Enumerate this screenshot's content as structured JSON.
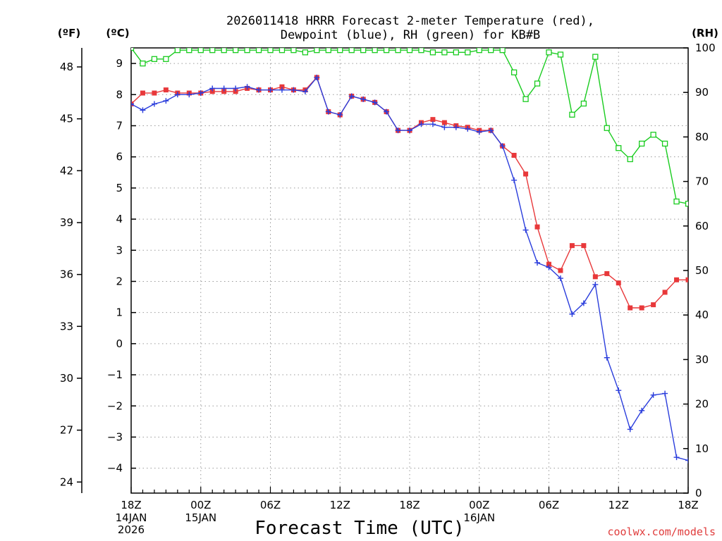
{
  "chart_data": {
    "type": "line",
    "title_line1": "2026011418 HRRR Forecast 2-meter Temperature (red),",
    "title_line2": "Dewpoint (blue), RH (green) for KB#B",
    "xlabel": "Forecast Time (UTC)",
    "credit": "coolwx.com/models",
    "left_unit_f": "(ºF)",
    "left_unit_c": "(ºC)",
    "right_unit": "(RH)",
    "forecast_hours": [
      0,
      1,
      2,
      3,
      4,
      5,
      6,
      7,
      8,
      9,
      10,
      11,
      12,
      13,
      14,
      15,
      16,
      17,
      18,
      19,
      20,
      21,
      22,
      23,
      24,
      25,
      26,
      27,
      28,
      29,
      30,
      31,
      32,
      33,
      34,
      35,
      36,
      37,
      38,
      39,
      40,
      41,
      42,
      43,
      44,
      45,
      46,
      47,
      48
    ],
    "x_ticks": [
      {
        "hour": 0,
        "label": "18Z",
        "sub1": "14JAN",
        "sub2": "2026"
      },
      {
        "hour": 6,
        "label": "00Z",
        "sub1": "15JAN",
        "sub2": ""
      },
      {
        "hour": 12,
        "label": "06Z",
        "sub1": "",
        "sub2": ""
      },
      {
        "hour": 18,
        "label": "12Z",
        "sub1": "",
        "sub2": ""
      },
      {
        "hour": 24,
        "label": "18Z",
        "sub1": "",
        "sub2": ""
      },
      {
        "hour": 30,
        "label": "00Z",
        "sub1": "16JAN",
        "sub2": ""
      },
      {
        "hour": 36,
        "label": "06Z",
        "sub1": "",
        "sub2": ""
      },
      {
        "hour": 42,
        "label": "12Z",
        "sub1": "",
        "sub2": ""
      },
      {
        "hour": 48,
        "label": "18Z",
        "sub1": "",
        "sub2": ""
      }
    ],
    "y_left_c": {
      "min": -4.8,
      "max": 9.5,
      "ticks": [
        9,
        8,
        7,
        6,
        5,
        4,
        3,
        2,
        1,
        0,
        -1,
        -2,
        -3,
        -4
      ],
      "labels": [
        "9",
        "8",
        "7",
        "6",
        "5",
        "4",
        "3",
        "2",
        "1",
        "0",
        "−1",
        "−2",
        "−3",
        "−4"
      ]
    },
    "y_left_f": {
      "ticks": [
        48,
        45,
        42,
        39,
        36,
        33,
        30,
        27,
        24
      ],
      "labels": [
        "48",
        "45",
        "42",
        "39",
        "36",
        "33",
        "30",
        "27",
        "24"
      ]
    },
    "y_right_rh": {
      "min": 0,
      "max": 100,
      "ticks": [
        100,
        90,
        80,
        70,
        60,
        50,
        40,
        30,
        20,
        10,
        0
      ],
      "labels": [
        "100",
        "90",
        "80",
        "70",
        "60",
        "50",
        "40",
        "30",
        "20",
        "10",
        "0"
      ]
    },
    "series": [
      {
        "name": "Temperature",
        "color": "#e8383a",
        "axis": "c",
        "marker": "filled-square",
        "values": [
          7.7,
          8.05,
          8.05,
          8.15,
          8.05,
          8.05,
          8.05,
          8.1,
          8.1,
          8.1,
          8.2,
          8.15,
          8.15,
          8.25,
          8.15,
          8.15,
          8.55,
          7.45,
          7.35,
          7.95,
          7.85,
          7.75,
          7.45,
          6.85,
          6.85,
          7.1,
          7.2,
          7.1,
          7.0,
          6.95,
          6.85,
          6.85,
          6.35,
          6.05,
          5.45,
          3.75,
          2.55,
          2.35,
          3.15,
          3.15,
          2.15,
          2.25,
          1.95,
          1.15,
          1.15,
          1.25,
          1.65,
          2.05,
          2.05
        ]
      },
      {
        "name": "Dewpoint",
        "color": "#2a3ddc",
        "axis": "c",
        "marker": "plus",
        "values": [
          7.7,
          7.5,
          7.7,
          7.8,
          8.0,
          8.0,
          8.05,
          8.2,
          8.2,
          8.2,
          8.25,
          8.15,
          8.15,
          8.15,
          8.15,
          8.1,
          8.55,
          7.45,
          7.35,
          7.95,
          7.85,
          7.75,
          7.45,
          6.85,
          6.85,
          7.05,
          7.05,
          6.95,
          6.95,
          6.9,
          6.8,
          6.85,
          6.35,
          5.25,
          3.65,
          2.6,
          2.45,
          2.1,
          0.95,
          1.3,
          1.9,
          -0.45,
          -1.5,
          -2.75,
          -2.15,
          -1.65,
          -1.6,
          -3.65,
          -3.75
        ]
      },
      {
        "name": "RH",
        "color": "#19cc1f",
        "axis": "rh",
        "marker": "open-square",
        "values": [
          100,
          96.5,
          97.5,
          97.5,
          99.5,
          99.5,
          99.5,
          99.5,
          99.5,
          99.5,
          99.5,
          99.5,
          99.5,
          99.5,
          99.5,
          99.0,
          99.5,
          99.5,
          99.5,
          99.5,
          99.5,
          99.5,
          99.5,
          99.5,
          99.5,
          99.5,
          99.0,
          99.0,
          99.0,
          99.0,
          99.5,
          99.5,
          99.5,
          94.5,
          88.5,
          92.0,
          99.0,
          98.5,
          85.0,
          87.5,
          98.0,
          82.0,
          77.5,
          75.0,
          78.5,
          80.5,
          78.5,
          65.5,
          65.0
        ]
      }
    ]
  }
}
